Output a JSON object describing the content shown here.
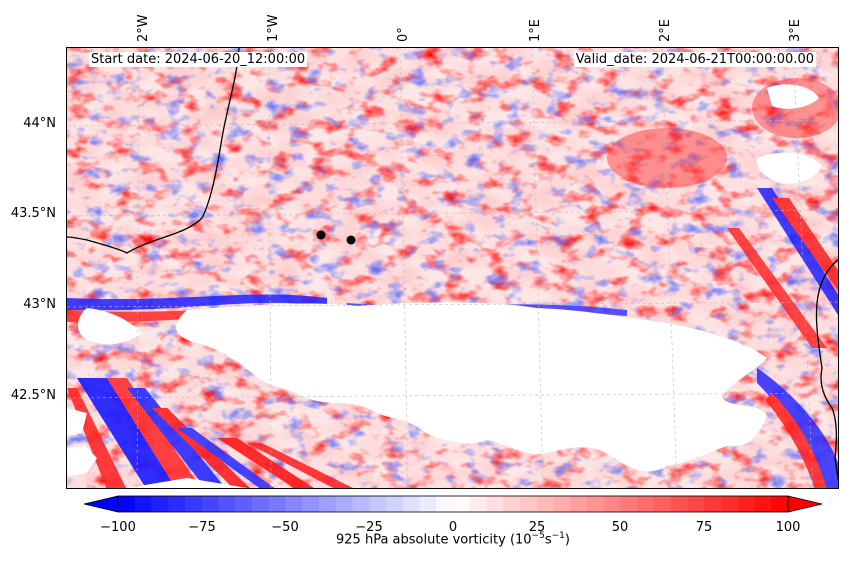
{
  "header": {
    "start_date": "Start date: 2024-06-20_12:00:00",
    "valid_date": "Valid_date: 2024-06-21T00:00:00.00"
  },
  "map": {
    "lon_labels": [
      "2°W",
      "1°W",
      "0°",
      "1°E",
      "2°E",
      "3°E"
    ],
    "lat_labels": [
      "44°N",
      "43.5°N",
      "43°N",
      "42.5°N"
    ],
    "field": "925 hPa absolute vorticity",
    "markers": [
      "black-dot",
      "black-dot"
    ],
    "masked_region": "white (terrain above 925 hPa)"
  },
  "colorbar": {
    "ticks": [
      "−100",
      "−75",
      "−50",
      "−25",
      "0",
      "25",
      "50",
      "75",
      "100"
    ],
    "min": -100,
    "max": 100,
    "extend": "both",
    "cmap": "bwr",
    "label_main": "925 hPa absolute vorticity (10",
    "label_exp1": "−5",
    "label_mid": "s",
    "label_exp2": "−1",
    "label_end": ")"
  },
  "colors": {
    "negative": "#0000ff",
    "zero": "#ffffff",
    "positive": "#ff0000",
    "coastline": "#000000",
    "grid": "#bbbbbb"
  }
}
